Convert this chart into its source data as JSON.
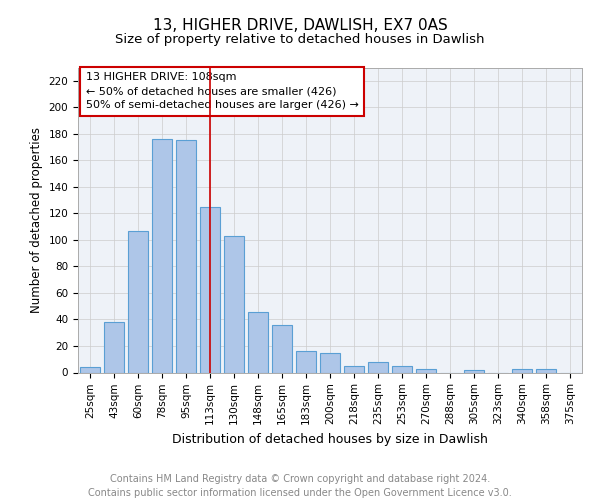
{
  "title": "13, HIGHER DRIVE, DAWLISH, EX7 0AS",
  "subtitle": "Size of property relative to detached houses in Dawlish",
  "xlabel": "Distribution of detached houses by size in Dawlish",
  "ylabel": "Number of detached properties",
  "categories": [
    "25sqm",
    "43sqm",
    "60sqm",
    "78sqm",
    "95sqm",
    "113sqm",
    "130sqm",
    "148sqm",
    "165sqm",
    "183sqm",
    "200sqm",
    "218sqm",
    "235sqm",
    "253sqm",
    "270sqm",
    "288sqm",
    "305sqm",
    "323sqm",
    "340sqm",
    "358sqm",
    "375sqm"
  ],
  "values": [
    4,
    38,
    107,
    176,
    175,
    125,
    103,
    46,
    36,
    16,
    15,
    5,
    8,
    5,
    3,
    0,
    2,
    0,
    3,
    3,
    0
  ],
  "bar_color": "#aec6e8",
  "bar_edge_color": "#5a9fd4",
  "vline_x_index": 5,
  "vline_color": "#cc0000",
  "annotation_title": "13 HIGHER DRIVE: 108sqm",
  "annotation_line1": "← 50% of detached houses are smaller (426)",
  "annotation_line2": "50% of semi-detached houses are larger (426) →",
  "annotation_box_color": "#cc0000",
  "ylim": [
    0,
    230
  ],
  "yticks": [
    0,
    20,
    40,
    60,
    80,
    100,
    120,
    140,
    160,
    180,
    200,
    220
  ],
  "grid_color": "#cccccc",
  "background_color": "#eef2f8",
  "footer_line1": "Contains HM Land Registry data © Crown copyright and database right 2024.",
  "footer_line2": "Contains public sector information licensed under the Open Government Licence v3.0.",
  "title_fontsize": 11,
  "subtitle_fontsize": 9.5,
  "xlabel_fontsize": 9,
  "ylabel_fontsize": 8.5,
  "tick_fontsize": 7.5,
  "ann_fontsize": 8,
  "footer_fontsize": 7
}
